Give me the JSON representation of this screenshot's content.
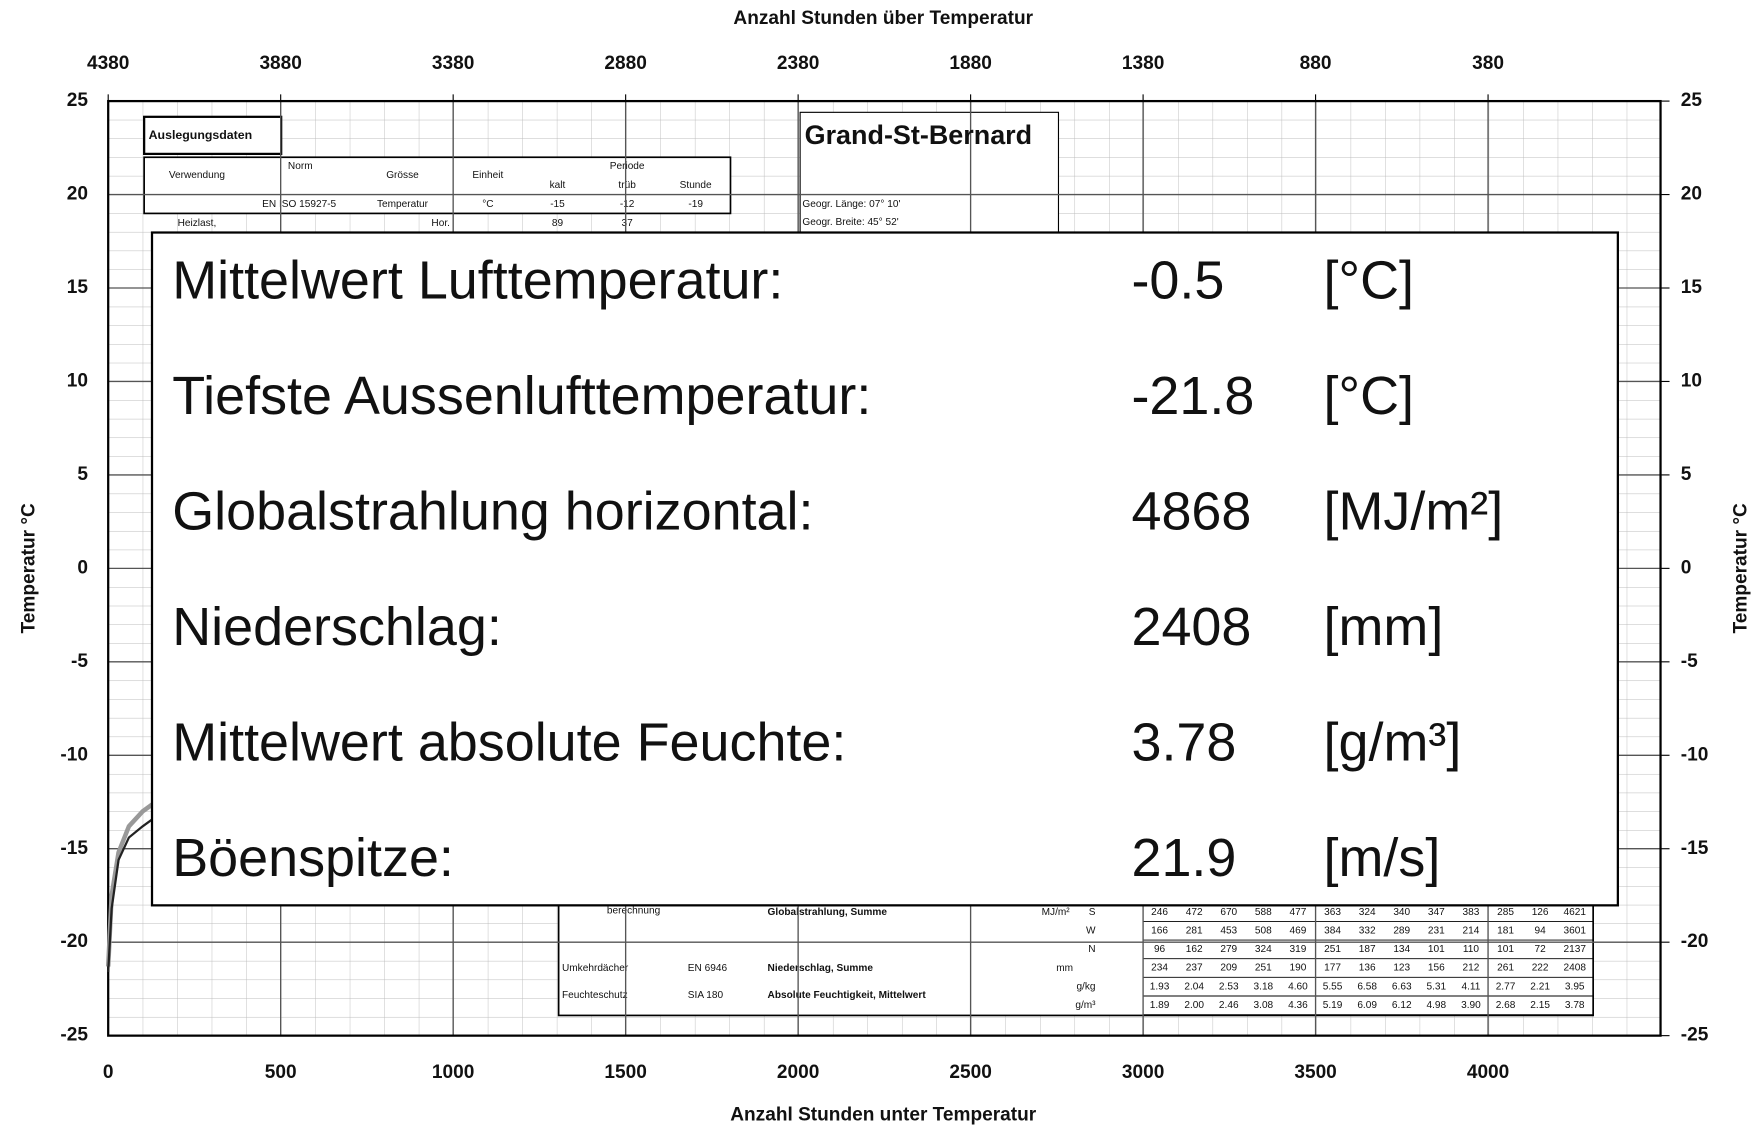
{
  "chart_data": {
    "type": "line",
    "x2_label": "Anzahl Stunden über Temperatur",
    "xlabel": "Anzahl Stunden unter Temperatur",
    "ylabel": "Temperatur °C",
    "y2label": "Temperatur °C",
    "xlim": [
      0,
      4500
    ],
    "xticks": [
      0,
      500,
      1000,
      1500,
      2000,
      2500,
      3000,
      3500,
      4000
    ],
    "x2lim": [
      4380,
      -120
    ],
    "x2ticks": [
      4380,
      3880,
      3380,
      2880,
      2380,
      1880,
      1380,
      880,
      380
    ],
    "ylim": [
      -25,
      25
    ],
    "yticks": [
      -25,
      -20,
      -15,
      -10,
      -5,
      0,
      5,
      10,
      15,
      20,
      25
    ],
    "y2lim": [
      -25,
      25
    ],
    "y2ticks": [
      -25,
      -20,
      -15,
      -10,
      -5,
      0,
      5,
      10,
      15,
      20,
      25
    ],
    "grid": true,
    "x": [
      0,
      10,
      30,
      60,
      100,
      130
    ],
    "series": [
      {
        "color": "#999999",
        "values": [
          -21.3,
          -17.5,
          -15.2,
          -13.8,
          -13.0,
          -12.6
        ]
      },
      {
        "color": "#222222",
        "values": [
          -21.6,
          -18.2,
          -15.6,
          -14.4,
          -13.8,
          -13.4
        ]
      }
    ]
  },
  "overlay": {
    "rows": [
      {
        "label": "Mittelwert Lufttemperatur:",
        "value": -0.5,
        "unit": "[°C]"
      },
      {
        "label": "Tiefste Aussenlufttemperatur:",
        "value": -21.8,
        "unit": "[°C]"
      },
      {
        "label": "Globalstrahlung horizontal:",
        "value": 4868,
        "unit": "[MJ/m²]"
      },
      {
        "label": "Niederschlag:",
        "value": 2408,
        "unit": "[mm]"
      },
      {
        "label": "Mittelwert absolute Feuchte:",
        "value": 3.78,
        "unit": "[g/m³]"
      },
      {
        "label": "Böenspitze:",
        "value": 21.9,
        "unit": "[m/s]"
      }
    ]
  },
  "background": {
    "station": "Grand-St-Bernard",
    "section": "Auslegungsdaten",
    "headers": [
      "Verwendung",
      "Norm",
      "Grösse",
      "Einheit",
      "Periode",
      "kalt",
      "trüb",
      "Stunde"
    ],
    "row1": [
      "EN ISO 15927-5",
      "Temperatur",
      "°C",
      "-15",
      "-12",
      "-19"
    ],
    "row2": [
      "Heizlast,",
      "Hor.",
      "89",
      "37"
    ],
    "geo": [
      "Geogr. Länge:  07° 10'",
      "Geogr. Breite:  45° 52'"
    ],
    "lower_labels": [
      "berechnung",
      "Globalstrahlung, Summe",
      "MJ/m²",
      "Umkehrdächer",
      "EN 6946",
      "Niederschlag, Summe",
      "mm",
      "Feuchteschutz",
      "SIA 180",
      "Absolute Feuchtigkeit, Mittelwert"
    ],
    "lower_rows": [
      {
        "key": "S",
        "cells": [
          "246",
          "472",
          "670",
          "588",
          "477",
          "363",
          "324",
          "340",
          "347",
          "383",
          "285",
          "126",
          "4621"
        ]
      },
      {
        "key": "W",
        "cells": [
          "166",
          "281",
          "453",
          "508",
          "469",
          "384",
          "332",
          "289",
          "231",
          "214",
          "181",
          "94",
          "3601"
        ]
      },
      {
        "key": "N",
        "cells": [
          "96",
          "162",
          "279",
          "324",
          "319",
          "251",
          "187",
          "134",
          "101",
          "110",
          "101",
          "72",
          "2137"
        ]
      },
      {
        "key": "",
        "cells": [
          "234",
          "237",
          "209",
          "251",
          "190",
          "177",
          "136",
          "123",
          "156",
          "212",
          "261",
          "222",
          "2408"
        ]
      },
      {
        "key": "g/kg",
        "cells": [
          "1.93",
          "2.04",
          "2.53",
          "3.18",
          "4.60",
          "5.55",
          "6.58",
          "6.63",
          "5.31",
          "4.11",
          "2.77",
          "2.21",
          "3.95"
        ]
      },
      {
        "key": "g/m³",
        "cells": [
          "1.89",
          "2.00",
          "2.46",
          "3.08",
          "4.36",
          "5.19",
          "6.09",
          "6.12",
          "4.98",
          "3.90",
          "2.68",
          "2.15",
          "3.78"
        ]
      }
    ]
  }
}
